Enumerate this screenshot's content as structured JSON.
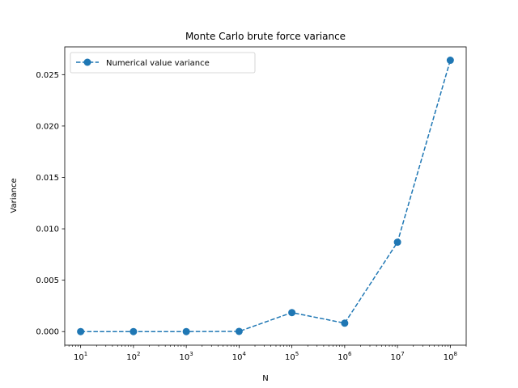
{
  "chart_data": {
    "type": "line",
    "title": "Monte Carlo brute force variance",
    "xlabel": "N",
    "ylabel": "Variance",
    "xscale": "log",
    "xlim": [
      5,
      200000000
    ],
    "ylim": [
      -0.00132,
      0.0277
    ],
    "x_ticks": [
      {
        "value": 10,
        "base": "10",
        "exp": "1"
      },
      {
        "value": 100,
        "base": "10",
        "exp": "2"
      },
      {
        "value": 1000,
        "base": "10",
        "exp": "3"
      },
      {
        "value": 10000,
        "base": "10",
        "exp": "4"
      },
      {
        "value": 100000,
        "base": "10",
        "exp": "5"
      },
      {
        "value": 1000000,
        "base": "10",
        "exp": "6"
      },
      {
        "value": 10000000,
        "base": "10",
        "exp": "7"
      },
      {
        "value": 100000000,
        "base": "10",
        "exp": "8"
      }
    ],
    "y_ticks": [
      {
        "value": 0.0,
        "label": "0.000"
      },
      {
        "value": 0.005,
        "label": "0.005"
      },
      {
        "value": 0.01,
        "label": "0.010"
      },
      {
        "value": 0.015,
        "label": "0.015"
      },
      {
        "value": 0.02,
        "label": "0.020"
      },
      {
        "value": 0.025,
        "label": "0.025"
      }
    ],
    "grid": false,
    "legend_position": "top-left",
    "series": [
      {
        "name": "Numerical value variance",
        "color": "#1f77b4",
        "line_style": "dashed",
        "marker": "circle",
        "x": [
          10,
          100,
          1000,
          10000,
          100000,
          1000000,
          10000000,
          100000000
        ],
        "y": [
          0.0,
          0.0,
          0.0,
          2e-05,
          0.00185,
          0.00082,
          0.0087,
          0.0264
        ]
      }
    ]
  }
}
